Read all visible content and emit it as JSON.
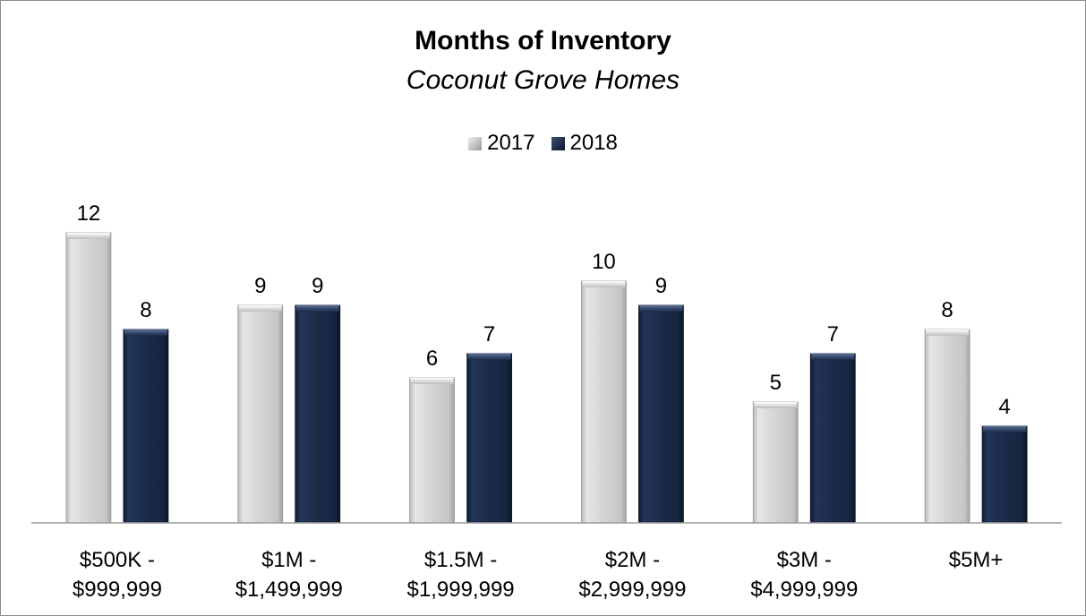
{
  "chart_data": {
    "type": "bar",
    "title": "Months of Inventory",
    "subtitle": "Coconut Grove Homes",
    "categories": [
      [
        "$500K -",
        "$999,999"
      ],
      [
        "$1M -",
        "$1,499,999"
      ],
      [
        "$1.5M -",
        "$1,999,999"
      ],
      [
        "$2M -",
        "$2,999,999"
      ],
      [
        "$3M -",
        "$4,999,999"
      ],
      [
        "$5M+"
      ]
    ],
    "series": [
      {
        "name": "2017",
        "color": "#d0d0d0",
        "values": [
          12,
          9,
          6,
          10,
          5,
          8
        ]
      },
      {
        "name": "2018",
        "color": "#1b2a47",
        "values": [
          8,
          9,
          7,
          9,
          7,
          4
        ]
      }
    ],
    "ylim": [
      0,
      14
    ],
    "grid": false,
    "legend_position": "top",
    "data_labels": true
  }
}
